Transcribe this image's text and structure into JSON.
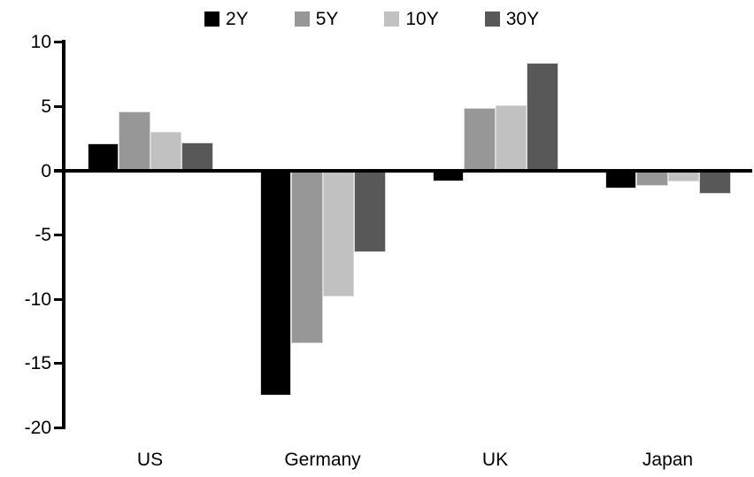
{
  "chart_data": {
    "type": "bar",
    "title": "",
    "xlabel": "",
    "ylabel": "",
    "categories": [
      "US",
      "Germany",
      "UK",
      "Japan"
    ],
    "series": [
      {
        "name": "2Y",
        "color": "#000000",
        "values": [
          2.1,
          -17.5,
          -0.8,
          -1.4
        ]
      },
      {
        "name": "5Y",
        "color": "#979797",
        "values": [
          4.6,
          -13.4,
          4.9,
          -1.2
        ]
      },
      {
        "name": "10Y",
        "color": "#c1c1c1",
        "values": [
          3.0,
          -9.8,
          5.1,
          -0.8
        ]
      },
      {
        "name": "30Y",
        "color": "#585858",
        "values": [
          2.2,
          -6.3,
          8.4,
          -1.8
        ]
      }
    ],
    "ylim": [
      -20,
      10
    ],
    "yticks": [
      10,
      5,
      0,
      -5,
      -10,
      -15,
      -20
    ],
    "grid": false,
    "legend_position": "top",
    "axis_color": "#000000",
    "background_color": "#ffffff",
    "bar_outline_color": "#d9d9d9"
  }
}
